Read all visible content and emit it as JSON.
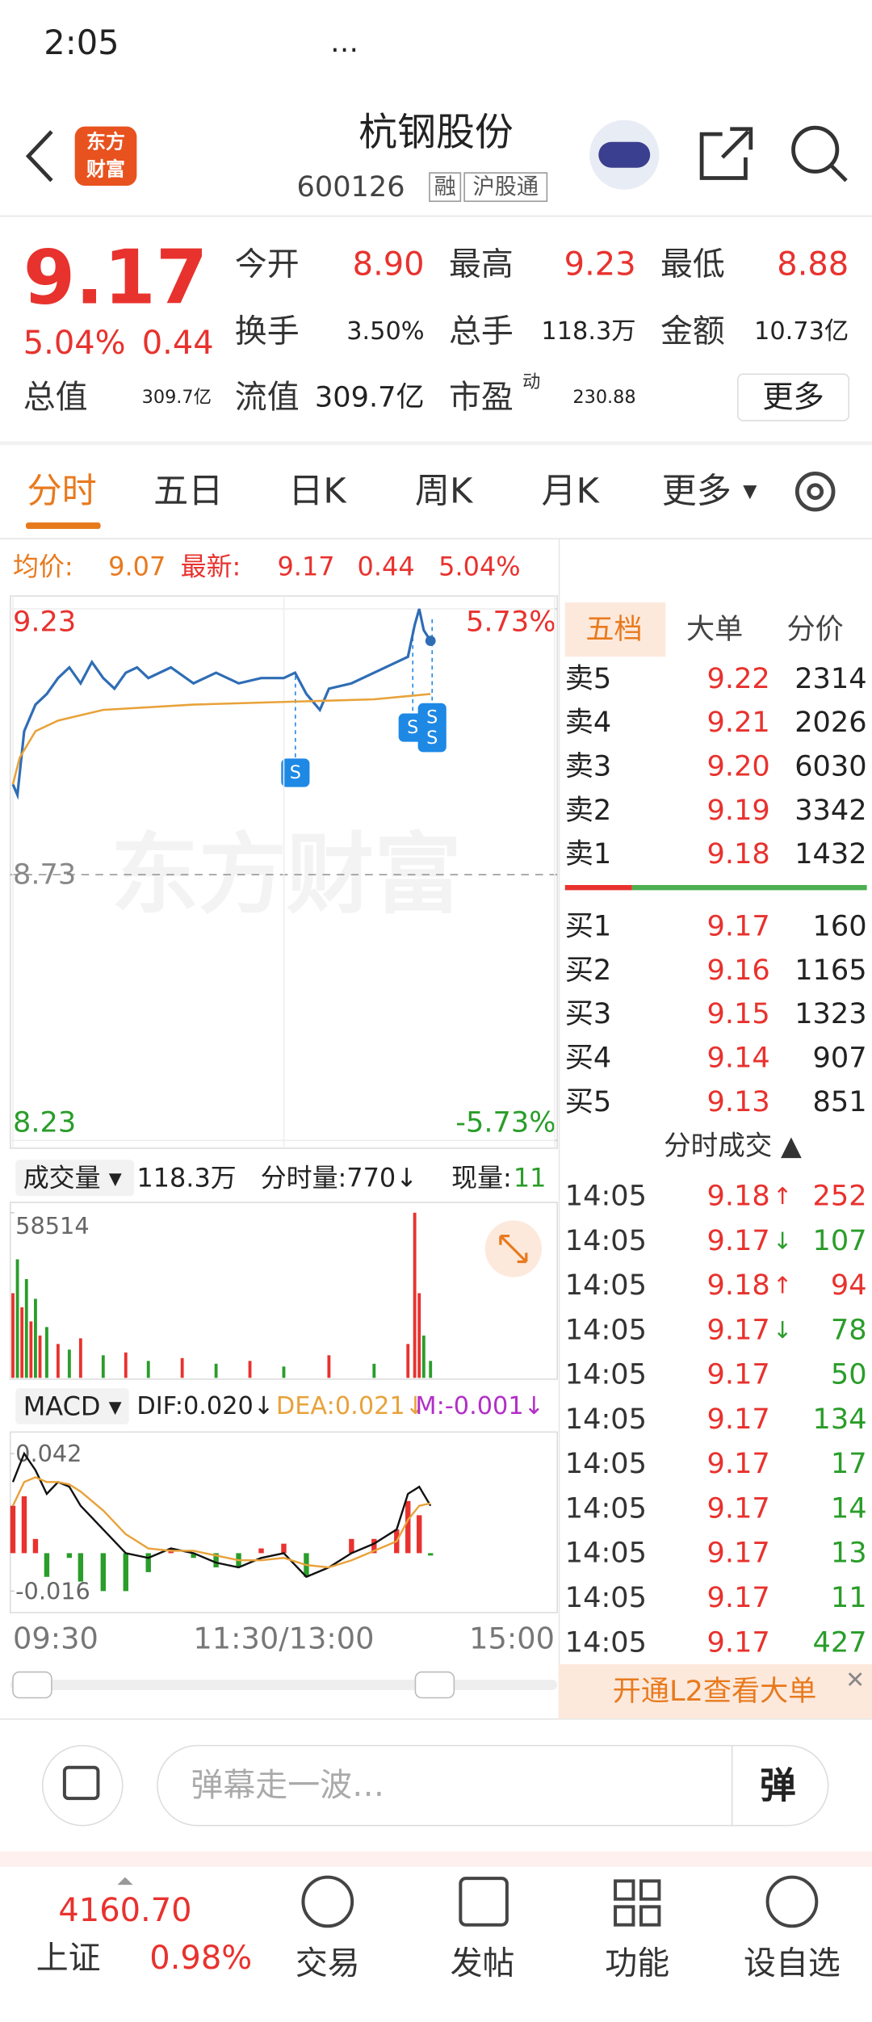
{
  "status_bar": {
    "time": "2:05",
    "more": "…"
  },
  "header": {
    "logo": [
      "东方",
      "财富"
    ],
    "title": "杭钢股份",
    "code": "600126",
    "tags": [
      "融",
      "沪股通"
    ]
  },
  "quote": {
    "price": "9.17",
    "change_pct": "5.04%",
    "change": "0.44",
    "fields": [
      {
        "label": "今开",
        "value": "8.90"
      },
      {
        "label": "最高",
        "value": "9.23"
      },
      {
        "label": "最低",
        "value": "8.88"
      },
      {
        "label": "换手",
        "value": "3.50%"
      },
      {
        "label": "总手",
        "value": "118.3万"
      },
      {
        "label": "金额",
        "value": "10.73亿"
      },
      {
        "label": "总值",
        "value": "309.7亿"
      },
      {
        "label": "流值",
        "value": "309.7亿"
      },
      {
        "label": "市盈",
        "sup": "动",
        "value": "230.88"
      }
    ],
    "more": "更多"
  },
  "tabs": [
    "分时",
    "五日",
    "日K",
    "周K",
    "月K",
    "更多"
  ],
  "info": {
    "avg_label": "均价:",
    "avg": "9.07",
    "last_label": "最新:",
    "last": "9.17",
    "change": "0.44",
    "change_pct": "5.04%"
  },
  "watermark": "东方财富",
  "price_chart": {
    "type": "line",
    "xlim": [
      0,
      240
    ],
    "xticks": [
      {
        "value": 0,
        "label": "09:30"
      },
      {
        "value": 120,
        "label": "11:30/13:00"
      },
      {
        "value": 240,
        "label": "15:00"
      }
    ],
    "ylim": [
      8.23,
      9.23
    ],
    "yticks": [
      9.23,
      8.73,
      8.23
    ],
    "y2lim": [
      -5.73,
      5.73
    ],
    "y2ticks": [
      {
        "value": 5.73,
        "label": "5.73%"
      },
      {
        "value": -5.73,
        "label": "-5.73%"
      }
    ],
    "series": [
      {
        "name": "price",
        "color": "#2f6db5",
        "x": [
          0,
          2,
          5,
          10,
          15,
          20,
          25,
          30,
          35,
          40,
          45,
          50,
          55,
          60,
          70,
          80,
          90,
          100,
          110,
          120,
          125,
          130,
          136,
          140,
          150,
          160,
          170,
          175,
          178,
          180,
          182,
          185
        ],
        "values": [
          8.9,
          8.88,
          9.0,
          9.05,
          9.07,
          9.1,
          9.12,
          9.09,
          9.13,
          9.1,
          9.08,
          9.11,
          9.12,
          9.1,
          9.12,
          9.09,
          9.11,
          9.09,
          9.1,
          9.1,
          9.11,
          9.07,
          9.04,
          9.08,
          9.09,
          9.11,
          9.13,
          9.14,
          9.2,
          9.23,
          9.19,
          9.17
        ]
      },
      {
        "name": "avg",
        "color": "#e8a23a",
        "x": [
          0,
          3,
          10,
          20,
          40,
          80,
          120,
          160,
          185
        ],
        "values": [
          8.9,
          8.95,
          9.0,
          9.02,
          9.04,
          9.05,
          9.055,
          9.06,
          9.07
        ]
      }
    ]
  },
  "volume_bar": {
    "label": "成交量 ▾",
    "total": "118.3万",
    "minute": "分时量:770↓",
    "current_label": "现量:",
    "current": "11"
  },
  "volume_chart": {
    "type": "bar",
    "ylim": [
      0,
      58514
    ],
    "yticks": [
      58514
    ],
    "x": [
      0,
      2,
      4,
      6,
      8,
      10,
      12,
      15,
      20,
      25,
      30,
      40,
      50,
      60,
      75,
      90,
      105,
      120,
      140,
      160,
      175,
      178,
      180,
      182,
      185
    ],
    "values": [
      30000,
      42000,
      25000,
      35000,
      20000,
      28000,
      15000,
      18000,
      12000,
      10000,
      14000,
      8000,
      9000,
      6000,
      7000,
      5000,
      6000,
      4000,
      8000,
      5000,
      12000,
      58514,
      30000,
      15000,
      6000
    ],
    "colors": [
      "#e8322e",
      "#2a9d2a",
      "#e8322e",
      "#2a9d2a",
      "#e8322e",
      "#2a9d2a",
      "#e8322e",
      "#2a9d2a",
      "#e8322e",
      "#2a9d2a",
      "#e8322e",
      "#2a9d2a",
      "#e8322e",
      "#2a9d2a",
      "#e8322e",
      "#2a9d2a",
      "#e8322e",
      "#2a9d2a",
      "#e8322e",
      "#2a9d2a",
      "#e8322e",
      "#e8322e",
      "#e8322e",
      "#2a9d2a",
      "#2a9d2a"
    ]
  },
  "macd_bar": {
    "label": "MACD ▾",
    "dif": "DIF:0.020↓",
    "dea": "DEA:0.021↓",
    "m": "M:-0.001↓"
  },
  "macd_chart": {
    "type": "macd",
    "ylim": [
      -0.024,
      0.05
    ],
    "yticks": [
      0.042,
      -0.016
    ],
    "up_color": "#e8322e",
    "down_color": "#2a9d2a",
    "x": [
      0,
      5,
      10,
      15,
      20,
      25,
      30,
      40,
      50,
      60,
      70,
      80,
      90,
      100,
      110,
      120,
      130,
      140,
      150,
      160,
      170,
      175,
      180,
      185
    ],
    "hist": [
      0.02,
      0.024,
      0.006,
      -0.01,
      0.0,
      -0.002,
      -0.012,
      -0.016,
      -0.016,
      -0.008,
      0.002,
      -0.002,
      -0.006,
      -0.006,
      0.002,
      0.004,
      -0.01,
      0.0,
      0.006,
      0.006,
      0.01,
      0.022,
      0.016,
      -0.001
    ],
    "series": [
      {
        "name": "DIF",
        "color": "#111111",
        "values": [
          0.03,
          0.042,
          0.035,
          0.025,
          0.03,
          0.028,
          0.02,
          0.01,
          0.0,
          -0.002,
          0.002,
          0.0,
          -0.004,
          -0.006,
          -0.002,
          0.0,
          -0.01,
          -0.006,
          0.0,
          0.004,
          0.01,
          0.025,
          0.028,
          0.02
        ]
      },
      {
        "name": "DEA",
        "color": "#e8a23a",
        "values": [
          0.02,
          0.03,
          0.032,
          0.03,
          0.03,
          0.029,
          0.026,
          0.018,
          0.008,
          0.002,
          0.001,
          0.001,
          -0.001,
          -0.003,
          -0.003,
          -0.002,
          -0.005,
          -0.006,
          -0.003,
          0.001,
          0.005,
          0.014,
          0.02,
          0.021
        ]
      }
    ]
  },
  "book": {
    "tabs": [
      "五档",
      "大单",
      "分价"
    ],
    "asks": [
      {
        "label": "卖5",
        "price": "9.22",
        "volume": "2314"
      },
      {
        "label": "卖4",
        "price": "9.21",
        "volume": "2026"
      },
      {
        "label": "卖3",
        "price": "9.20",
        "volume": "6030"
      },
      {
        "label": "卖2",
        "price": "9.19",
        "volume": "3342"
      },
      {
        "label": "卖1",
        "price": "9.18",
        "volume": "1432"
      }
    ],
    "bids": [
      {
        "label": "买1",
        "price": "9.17",
        "volume": "160"
      },
      {
        "label": "买2",
        "price": "9.16",
        "volume": "1165"
      },
      {
        "label": "买3",
        "price": "9.15",
        "volume": "1323"
      },
      {
        "label": "买4",
        "price": "9.14",
        "volume": "907"
      },
      {
        "label": "买5",
        "price": "9.13",
        "volume": "851"
      }
    ]
  },
  "trades": {
    "title": "分时成交 ▲",
    "rows": [
      {
        "time": "14:05",
        "price": "9.18",
        "dir": "↑",
        "volume": "252",
        "color": "#e8322e"
      },
      {
        "time": "14:05",
        "price": "9.17",
        "dir": "↓",
        "volume": "107",
        "color": "#2a9d2a"
      },
      {
        "time": "14:05",
        "price": "9.18",
        "dir": "↑",
        "volume": "94",
        "color": "#e8322e"
      },
      {
        "time": "14:05",
        "price": "9.17",
        "dir": "↓",
        "volume": "78",
        "color": "#2a9d2a"
      },
      {
        "time": "14:05",
        "price": "9.17",
        "volume": "50",
        "color": "#2a9d2a"
      },
      {
        "time": "14:05",
        "price": "9.17",
        "volume": "134",
        "color": "#2a9d2a"
      },
      {
        "time": "14:05",
        "price": "9.17",
        "volume": "17",
        "color": "#2a9d2a"
      },
      {
        "time": "14:05",
        "price": "9.17",
        "volume": "14",
        "color": "#2a9d2a"
      },
      {
        "time": "14:05",
        "price": "9.17",
        "volume": "13",
        "color": "#2a9d2a"
      },
      {
        "time": "14:05",
        "price": "9.17",
        "volume": "11",
        "color": "#2a9d2a"
      },
      {
        "time": "14:05",
        "price": "9.17",
        "volume": "427",
        "color": "#2a9d2a"
      }
    ],
    "banner": "开通L2查看大单"
  },
  "comment": {
    "placeholder": "弹幕走一波…",
    "button": "弹"
  },
  "bottom_nav": {
    "index_value": "4160.70",
    "index_name": "上证",
    "index_pct": "0.98%",
    "items": [
      "交易",
      "发帖",
      "功能",
      "设自选"
    ]
  }
}
